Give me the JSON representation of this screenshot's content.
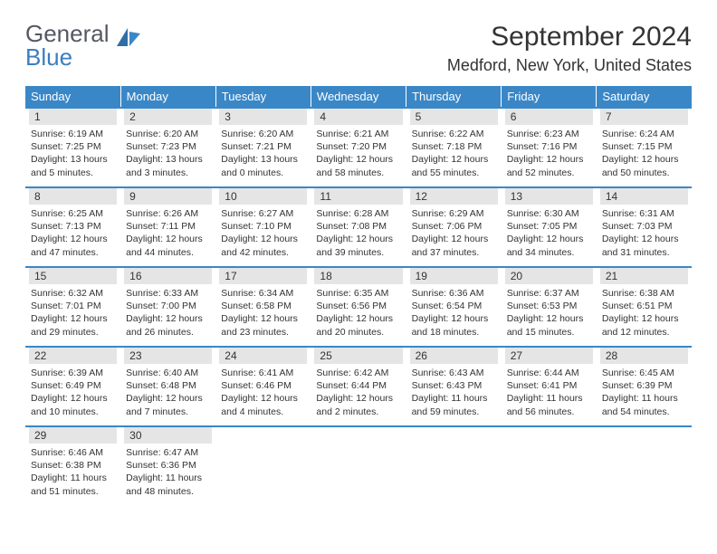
{
  "brand": {
    "word1": "General",
    "word2": "Blue"
  },
  "title": "September 2024",
  "location": "Medford, New York, United States",
  "weekdays": [
    "Sunday",
    "Monday",
    "Tuesday",
    "Wednesday",
    "Thursday",
    "Friday",
    "Saturday"
  ],
  "colors": {
    "header_bg": "#3a87c7",
    "header_text": "#ffffff",
    "daynum_bg": "#e5e5e5",
    "rule": "#3a87c7",
    "brand_gray": "#555863",
    "brand_blue": "#3a7ec1"
  },
  "weeks": [
    [
      {
        "n": "1",
        "sr": "Sunrise: 6:19 AM",
        "ss": "Sunset: 7:25 PM",
        "d1": "Daylight: 13 hours",
        "d2": "and 5 minutes."
      },
      {
        "n": "2",
        "sr": "Sunrise: 6:20 AM",
        "ss": "Sunset: 7:23 PM",
        "d1": "Daylight: 13 hours",
        "d2": "and 3 minutes."
      },
      {
        "n": "3",
        "sr": "Sunrise: 6:20 AM",
        "ss": "Sunset: 7:21 PM",
        "d1": "Daylight: 13 hours",
        "d2": "and 0 minutes."
      },
      {
        "n": "4",
        "sr": "Sunrise: 6:21 AM",
        "ss": "Sunset: 7:20 PM",
        "d1": "Daylight: 12 hours",
        "d2": "and 58 minutes."
      },
      {
        "n": "5",
        "sr": "Sunrise: 6:22 AM",
        "ss": "Sunset: 7:18 PM",
        "d1": "Daylight: 12 hours",
        "d2": "and 55 minutes."
      },
      {
        "n": "6",
        "sr": "Sunrise: 6:23 AM",
        "ss": "Sunset: 7:16 PM",
        "d1": "Daylight: 12 hours",
        "d2": "and 52 minutes."
      },
      {
        "n": "7",
        "sr": "Sunrise: 6:24 AM",
        "ss": "Sunset: 7:15 PM",
        "d1": "Daylight: 12 hours",
        "d2": "and 50 minutes."
      }
    ],
    [
      {
        "n": "8",
        "sr": "Sunrise: 6:25 AM",
        "ss": "Sunset: 7:13 PM",
        "d1": "Daylight: 12 hours",
        "d2": "and 47 minutes."
      },
      {
        "n": "9",
        "sr": "Sunrise: 6:26 AM",
        "ss": "Sunset: 7:11 PM",
        "d1": "Daylight: 12 hours",
        "d2": "and 44 minutes."
      },
      {
        "n": "10",
        "sr": "Sunrise: 6:27 AM",
        "ss": "Sunset: 7:10 PM",
        "d1": "Daylight: 12 hours",
        "d2": "and 42 minutes."
      },
      {
        "n": "11",
        "sr": "Sunrise: 6:28 AM",
        "ss": "Sunset: 7:08 PM",
        "d1": "Daylight: 12 hours",
        "d2": "and 39 minutes."
      },
      {
        "n": "12",
        "sr": "Sunrise: 6:29 AM",
        "ss": "Sunset: 7:06 PM",
        "d1": "Daylight: 12 hours",
        "d2": "and 37 minutes."
      },
      {
        "n": "13",
        "sr": "Sunrise: 6:30 AM",
        "ss": "Sunset: 7:05 PM",
        "d1": "Daylight: 12 hours",
        "d2": "and 34 minutes."
      },
      {
        "n": "14",
        "sr": "Sunrise: 6:31 AM",
        "ss": "Sunset: 7:03 PM",
        "d1": "Daylight: 12 hours",
        "d2": "and 31 minutes."
      }
    ],
    [
      {
        "n": "15",
        "sr": "Sunrise: 6:32 AM",
        "ss": "Sunset: 7:01 PM",
        "d1": "Daylight: 12 hours",
        "d2": "and 29 minutes."
      },
      {
        "n": "16",
        "sr": "Sunrise: 6:33 AM",
        "ss": "Sunset: 7:00 PM",
        "d1": "Daylight: 12 hours",
        "d2": "and 26 minutes."
      },
      {
        "n": "17",
        "sr": "Sunrise: 6:34 AM",
        "ss": "Sunset: 6:58 PM",
        "d1": "Daylight: 12 hours",
        "d2": "and 23 minutes."
      },
      {
        "n": "18",
        "sr": "Sunrise: 6:35 AM",
        "ss": "Sunset: 6:56 PM",
        "d1": "Daylight: 12 hours",
        "d2": "and 20 minutes."
      },
      {
        "n": "19",
        "sr": "Sunrise: 6:36 AM",
        "ss": "Sunset: 6:54 PM",
        "d1": "Daylight: 12 hours",
        "d2": "and 18 minutes."
      },
      {
        "n": "20",
        "sr": "Sunrise: 6:37 AM",
        "ss": "Sunset: 6:53 PM",
        "d1": "Daylight: 12 hours",
        "d2": "and 15 minutes."
      },
      {
        "n": "21",
        "sr": "Sunrise: 6:38 AM",
        "ss": "Sunset: 6:51 PM",
        "d1": "Daylight: 12 hours",
        "d2": "and 12 minutes."
      }
    ],
    [
      {
        "n": "22",
        "sr": "Sunrise: 6:39 AM",
        "ss": "Sunset: 6:49 PM",
        "d1": "Daylight: 12 hours",
        "d2": "and 10 minutes."
      },
      {
        "n": "23",
        "sr": "Sunrise: 6:40 AM",
        "ss": "Sunset: 6:48 PM",
        "d1": "Daylight: 12 hours",
        "d2": "and 7 minutes."
      },
      {
        "n": "24",
        "sr": "Sunrise: 6:41 AM",
        "ss": "Sunset: 6:46 PM",
        "d1": "Daylight: 12 hours",
        "d2": "and 4 minutes."
      },
      {
        "n": "25",
        "sr": "Sunrise: 6:42 AM",
        "ss": "Sunset: 6:44 PM",
        "d1": "Daylight: 12 hours",
        "d2": "and 2 minutes."
      },
      {
        "n": "26",
        "sr": "Sunrise: 6:43 AM",
        "ss": "Sunset: 6:43 PM",
        "d1": "Daylight: 11 hours",
        "d2": "and 59 minutes."
      },
      {
        "n": "27",
        "sr": "Sunrise: 6:44 AM",
        "ss": "Sunset: 6:41 PM",
        "d1": "Daylight: 11 hours",
        "d2": "and 56 minutes."
      },
      {
        "n": "28",
        "sr": "Sunrise: 6:45 AM",
        "ss": "Sunset: 6:39 PM",
        "d1": "Daylight: 11 hours",
        "d2": "and 54 minutes."
      }
    ],
    [
      {
        "n": "29",
        "sr": "Sunrise: 6:46 AM",
        "ss": "Sunset: 6:38 PM",
        "d1": "Daylight: 11 hours",
        "d2": "and 51 minutes."
      },
      {
        "n": "30",
        "sr": "Sunrise: 6:47 AM",
        "ss": "Sunset: 6:36 PM",
        "d1": "Daylight: 11 hours",
        "d2": "and 48 minutes."
      },
      null,
      null,
      null,
      null,
      null
    ]
  ]
}
